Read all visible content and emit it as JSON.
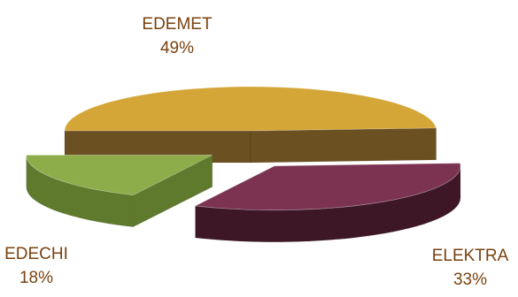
{
  "chart_data": {
    "type": "pie",
    "style": "3d-exploded",
    "slices": [
      {
        "label": "EDEMET",
        "value": 49,
        "display": "49%",
        "color": "#d4a637",
        "side_color": "#6b5021"
      },
      {
        "label": "ELEKTRA",
        "value": 33,
        "display": "33%",
        "color": "#7b3351",
        "side_color": "#3e1727"
      },
      {
        "label": "EDECHI",
        "value": 18,
        "display": "18%",
        "color": "#8cad49",
        "side_color": "#5f7a2c"
      }
    ],
    "label_color": "#7a4210",
    "legend": "none"
  }
}
